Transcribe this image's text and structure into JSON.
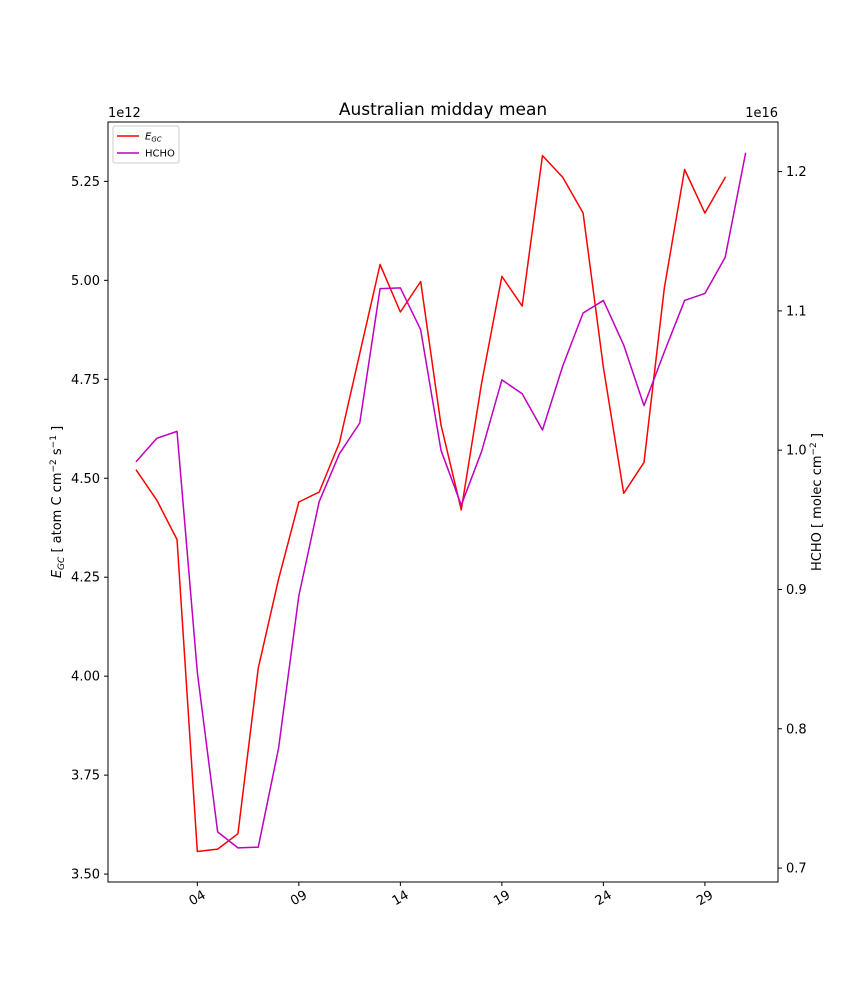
{
  "chart_data": {
    "type": "line",
    "title": "Australian midday mean",
    "x": [
      1,
      2,
      3,
      4,
      5,
      6,
      7,
      8,
      9,
      10,
      11,
      12,
      13,
      14,
      15,
      16,
      17,
      18,
      19,
      20,
      21,
      22,
      23,
      24,
      25,
      26,
      27,
      28,
      29,
      30,
      31
    ],
    "x_ticks": [
      4,
      9,
      14,
      19,
      24,
      29
    ],
    "x_tick_labels": [
      "04",
      "09",
      "14",
      "19",
      "24",
      "29"
    ],
    "xlim": [
      -0.4,
      32.6
    ],
    "left_axis": {
      "label_main": "E",
      "label_sub": "GC",
      "label_rest": " [ atom C cm",
      "label_sup1": "−2",
      "label_mid": " s",
      "label_sup2": "−1",
      "label_end": " ]",
      "offset_text": "1e12",
      "ticks": [
        3.5,
        3.75,
        4.0,
        4.25,
        4.5,
        4.75,
        5.0,
        5.25
      ],
      "tick_labels": [
        "3.50",
        "3.75",
        "4.00",
        "4.25",
        "4.50",
        "4.75",
        "5.00",
        "5.25"
      ],
      "ylim": [
        3.48,
        5.4
      ]
    },
    "right_axis": {
      "label_main": "HCHO [ molec cm",
      "label_sup": "−2",
      "label_end": " ]",
      "offset_text": "1e16",
      "ticks": [
        0.7,
        0.8,
        0.9,
        1.0,
        1.1,
        1.2
      ],
      "tick_labels": [
        "0.7",
        "0.8",
        "0.9",
        "1.0",
        "1.1",
        "1.2"
      ],
      "ylim": [
        0.69,
        1.2356
      ]
    },
    "series": [
      {
        "name_main": "E",
        "name_sub": "GC",
        "axis": "left",
        "color": "#ff0000",
        "x": [
          1,
          2,
          3,
          4,
          5,
          6,
          7,
          8,
          9,
          10,
          11,
          12,
          13,
          14,
          15,
          16,
          17,
          18,
          19,
          20,
          21,
          22,
          23,
          24,
          25,
          26,
          27,
          28,
          29,
          30
        ],
        "values": [
          4.52,
          4.445,
          4.345,
          3.557,
          3.563,
          3.602,
          4.02,
          4.245,
          4.44,
          4.465,
          4.59,
          4.815,
          5.04,
          4.92,
          4.997,
          4.635,
          4.42,
          4.74,
          5.01,
          4.935,
          5.315,
          5.26,
          5.17,
          4.78,
          4.462,
          4.54,
          4.98,
          5.28,
          5.17,
          5.26
        ]
      },
      {
        "name": "HCHO",
        "axis": "right",
        "color": "#bf00bf",
        "x": [
          1,
          2,
          3,
          4,
          5,
          6,
          7,
          8,
          9,
          10,
          11,
          12,
          13,
          14,
          15,
          16,
          17,
          18,
          19,
          20,
          21,
          22,
          23,
          24,
          25,
          26,
          27,
          28,
          29,
          30,
          31
        ],
        "values": [
          0.992,
          1.0085,
          1.0135,
          0.8405,
          0.726,
          0.7145,
          0.715,
          0.786,
          0.8955,
          0.963,
          0.9975,
          1.0195,
          1.116,
          1.1165,
          1.0865,
          1.0,
          0.9605,
          0.999,
          1.0505,
          1.0405,
          1.0145,
          1.0605,
          1.0985,
          1.1075,
          1.0755,
          1.032,
          1.0705,
          1.1075,
          1.1125,
          1.1385,
          1.213
        ]
      }
    ],
    "legend_position": "top-left",
    "grid": false
  }
}
